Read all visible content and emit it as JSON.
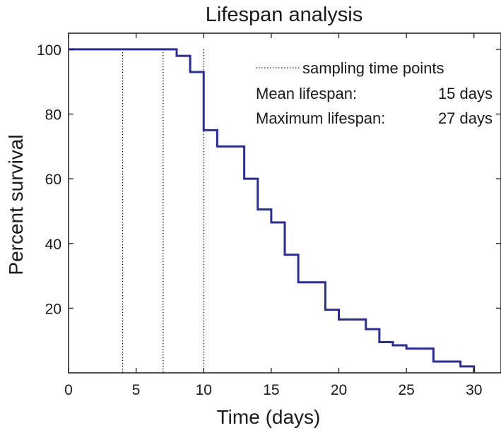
{
  "chart_data": {
    "type": "line",
    "title": "Lifespan analysis",
    "xlabel": "Time (days)",
    "ylabel": "Percent survival",
    "xlim": [
      0,
      32
    ],
    "ylim": [
      0,
      105
    ],
    "x_ticks": [
      0,
      5,
      10,
      15,
      20,
      25,
      30
    ],
    "y_ticks": [
      20,
      40,
      60,
      80,
      100
    ],
    "grid": false,
    "step": true,
    "line_color": "#2b2e8f",
    "series": [
      {
        "x": [
          0,
          8,
          9,
          10,
          11,
          13,
          14,
          15,
          16,
          17,
          19,
          20,
          22,
          23,
          24,
          25,
          27,
          29,
          30
        ],
        "values": [
          100,
          98,
          93,
          75,
          70,
          60,
          50.5,
          46.5,
          36.5,
          28,
          19.5,
          16.5,
          13.5,
          9.5,
          8.5,
          7.5,
          3.5,
          2,
          0
        ]
      }
    ],
    "sampling_time_points": [
      4,
      7,
      10
    ],
    "legend": {
      "placement": "top-right",
      "sampling_label": "sampling time points",
      "mean_label": "Mean lifespan:",
      "mean_value": "15 days",
      "max_label": "Maximum lifespan:",
      "max_value": "27 days"
    }
  }
}
